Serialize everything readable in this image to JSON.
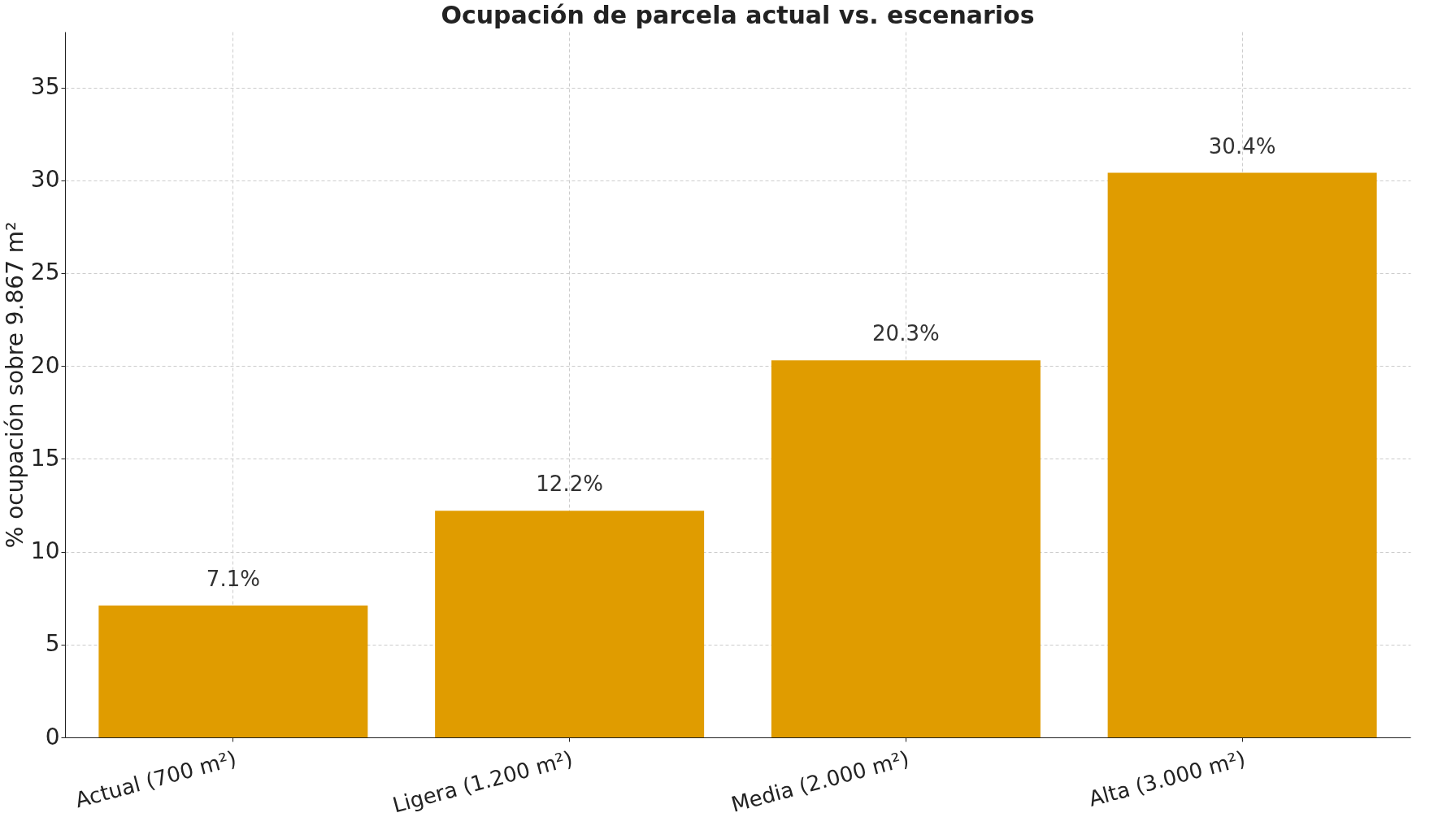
{
  "chart_data": {
    "type": "bar",
    "title": "Ocupación de parcela actual vs. escenarios",
    "ylabel": "% ocupación sobre 9.867 m²",
    "categories": [
      "Actual (700 m²)",
      "Ligera (1.200 m²)",
      "Media (2.000 m²)",
      "Alta (3.000 m²)"
    ],
    "values": [
      7.1,
      12.2,
      20.3,
      30.4
    ],
    "value_labels": [
      "7.1%",
      "12.2%",
      "20.3%",
      "30.4%"
    ],
    "color": "#e09c00",
    "ylim": [
      0,
      38
    ],
    "yticks": [
      0,
      5,
      10,
      15,
      20,
      25,
      30,
      35
    ],
    "grid": true
  }
}
